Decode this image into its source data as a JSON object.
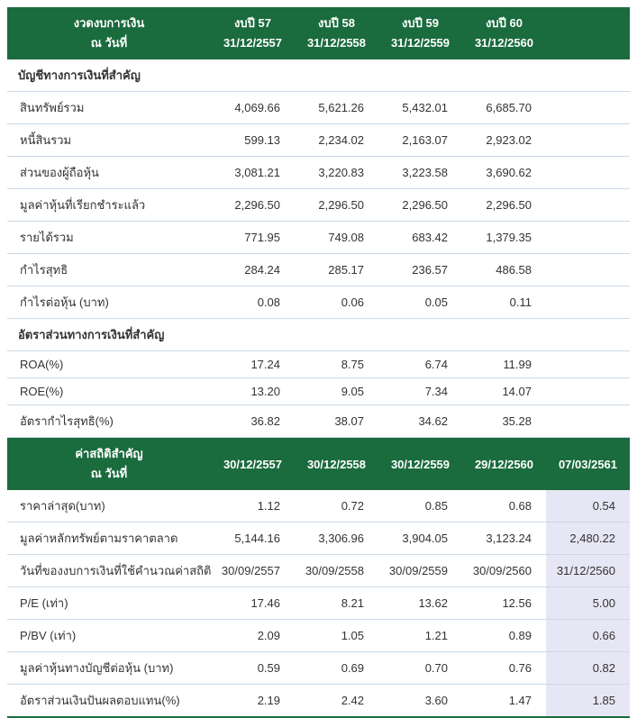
{
  "theme": {
    "header_green": "#1a6b3d",
    "header_text": "#ffffff",
    "highlight_lavender": "#e6e6f4",
    "row_border": "#ccd9e6",
    "text_color": "#333333"
  },
  "chart_data": [
    {
      "type": "table",
      "header": {
        "label_line1": "งวดงบการเงิน",
        "label_line2": "ณ วันที่",
        "columns": [
          {
            "title": "งบปี 57",
            "date": "31/12/2557"
          },
          {
            "title": "งบปี 58",
            "date": "31/12/2558"
          },
          {
            "title": "งบปี 59",
            "date": "31/12/2559"
          },
          {
            "title": "งบปี 60",
            "date": "31/12/2560"
          }
        ]
      },
      "sections": [
        {
          "title": "บัญชีทางการเงินที่สำคัญ",
          "rows": [
            {
              "label": "สินทรัพย์รวม",
              "values": [
                "4,069.66",
                "5,621.26",
                "5,432.01",
                "6,685.70",
                ""
              ]
            },
            {
              "label": "หนี้สินรวม",
              "values": [
                "599.13",
                "2,234.02",
                "2,163.07",
                "2,923.02",
                ""
              ]
            },
            {
              "label": "ส่วนของผู้ถือหุ้น",
              "values": [
                "3,081.21",
                "3,220.83",
                "3,223.58",
                "3,690.62",
                ""
              ]
            },
            {
              "label": "มูลค่าหุ้นที่เรียกชำระแล้ว",
              "values": [
                "2,296.50",
                "2,296.50",
                "2,296.50",
                "2,296.50",
                ""
              ]
            },
            {
              "label": "รายได้รวม",
              "values": [
                "771.95",
                "749.08",
                "683.42",
                "1,379.35",
                ""
              ]
            },
            {
              "label": "กำไรสุทธิ",
              "values": [
                "284.24",
                "285.17",
                "236.57",
                "486.58",
                ""
              ]
            },
            {
              "label": "กำไรต่อหุ้น (บาท)",
              "values": [
                "0.08",
                "0.06",
                "0.05",
                "0.11",
                ""
              ]
            }
          ]
        },
        {
          "title": "อัตราส่วนทางการเงินที่สำคัญ",
          "rows": [
            {
              "label": "ROA(%)",
              "values": [
                "17.24",
                "8.75",
                "6.74",
                "11.99",
                ""
              ]
            },
            {
              "label": "ROE(%)",
              "values": [
                "13.20",
                "9.05",
                "7.34",
                "14.07",
                ""
              ]
            },
            {
              "label": "อัตรากำไรสุทธิ(%)",
              "values": [
                "36.82",
                "38.07",
                "34.62",
                "35.28",
                ""
              ]
            }
          ]
        }
      ]
    },
    {
      "type": "table",
      "header": {
        "label_line1": "ค่าสถิติสำคัญ",
        "label_line2": "ณ วันที่",
        "columns": [
          "30/12/2557",
          "30/12/2558",
          "30/12/2559",
          "29/12/2560",
          "07/03/2561"
        ]
      },
      "rows": [
        {
          "label": "ราคาล่าสุด(บาท)",
          "values": [
            "1.12",
            "0.72",
            "0.85",
            "0.68",
            "0.54"
          ]
        },
        {
          "label": "มูลค่าหลักทรัพย์ตามราคาตลาด",
          "values": [
            "5,144.16",
            "3,306.96",
            "3,904.05",
            "3,123.24",
            "2,480.22"
          ]
        },
        {
          "label": "วันที่ของงบการเงินที่ใช้คำนวณค่าสถิติ",
          "values": [
            "30/09/2557",
            "30/09/2558",
            "30/09/2559",
            "30/09/2560",
            "31/12/2560"
          ]
        },
        {
          "label": "P/E (เท่า)",
          "values": [
            "17.46",
            "8.21",
            "13.62",
            "12.56",
            "5.00"
          ]
        },
        {
          "label": "P/BV (เท่า)",
          "values": [
            "2.09",
            "1.05",
            "1.21",
            "0.89",
            "0.66"
          ]
        },
        {
          "label": "มูลค่าหุ้นทางบัญชีต่อหุ้น (บาท)",
          "values": [
            "0.59",
            "0.69",
            "0.70",
            "0.76",
            "0.82"
          ]
        },
        {
          "label": "อัตราส่วนเงินปันผลตอบแทน(%)",
          "values": [
            "2.19",
            "2.42",
            "3.60",
            "1.47",
            "1.85"
          ]
        }
      ]
    }
  ]
}
